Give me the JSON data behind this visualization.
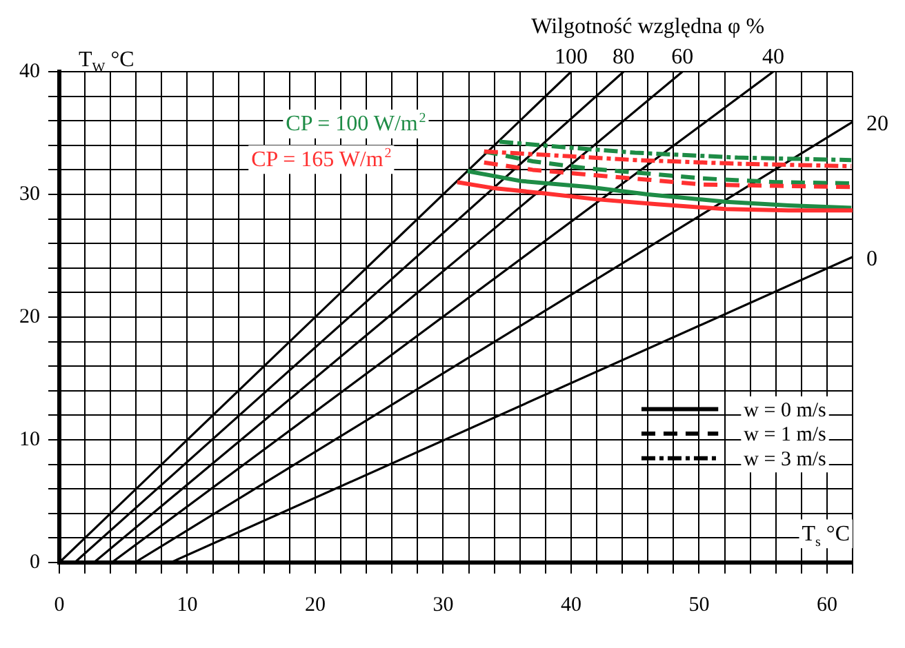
{
  "chart_data": {
    "type": "line",
    "xlabel": "T$_{s}$ °C",
    "ylabel": "T$_{W}$ °C",
    "xlim": [
      0,
      62
    ],
    "ylim": [
      0,
      40
    ],
    "xticks": [
      0,
      {
        "value": 2,
        "label": null
      },
      {
        "value": 4,
        "label": null
      },
      {
        "value": 6,
        "label": null
      },
      {
        "value": 8,
        "label": null
      },
      10,
      {
        "value": 12,
        "label": null
      },
      {
        "value": 14,
        "label": null
      },
      {
        "value": 16,
        "label": null
      },
      {
        "value": 18,
        "label": null
      },
      20,
      {
        "value": 22,
        "label": null
      },
      {
        "value": 24,
        "label": null
      },
      {
        "value": 26,
        "label": null
      },
      {
        "value": 28,
        "label": null
      },
      30,
      {
        "value": 32,
        "label": null
      },
      {
        "value": 34,
        "label": null
      },
      {
        "value": 36,
        "label": null
      },
      {
        "value": 38,
        "label": null
      },
      40,
      {
        "value": 42,
        "label": null
      },
      {
        "value": 44,
        "label": null
      },
      {
        "value": 46,
        "label": null
      },
      {
        "value": 48,
        "label": null
      },
      50,
      {
        "value": 52,
        "label": null
      },
      {
        "value": 54,
        "label": null
      },
      {
        "value": 56,
        "label": null
      },
      {
        "value": 58,
        "label": null
      },
      60,
      {
        "value": 62,
        "label": null
      }
    ],
    "yticks": [
      0,
      {
        "value": 2,
        "label": null
      },
      {
        "value": 4,
        "label": null
      },
      {
        "value": 6,
        "label": null
      },
      {
        "value": 8,
        "label": null
      },
      10,
      {
        "value": 12,
        "label": null
      },
      {
        "value": 14,
        "label": null
      },
      {
        "value": 16,
        "label": null
      },
      {
        "value": 18,
        "label": null
      },
      20,
      {
        "value": 22,
        "label": null
      },
      {
        "value": 24,
        "label": null
      },
      {
        "value": 26,
        "label": null
      },
      {
        "value": 28,
        "label": null
      },
      30,
      {
        "value": 32,
        "label": null
      },
      {
        "value": 34,
        "label": null
      },
      {
        "value": 36,
        "label": null
      },
      {
        "value": 38,
        "label": null
      },
      40
    ],
    "grid": true,
    "marker": "none",
    "series": [
      {
        "name": "100",
        "color": "#000000",
        "line_style": "solid",
        "x": [
          0,
          40
        ],
        "values": [
          0,
          40
        ]
      },
      {
        "name": "80",
        "color": "#000000",
        "line_style": "solid",
        "x": [
          1.2,
          44.1
        ],
        "values": [
          0,
          40
        ]
      },
      {
        "name": "60",
        "color": "#000000",
        "line_style": "solid",
        "x": [
          2.7,
          48.7
        ],
        "values": [
          0,
          40
        ]
      },
      {
        "name": "40",
        "color": "#000000",
        "line_style": "solid",
        "x": [
          4.1,
          55.8
        ],
        "values": [
          0,
          40
        ]
      },
      {
        "name": "20",
        "color": "#000000",
        "line_style": "solid",
        "x": [
          5.9,
          62
        ],
        "values": [
          0,
          35.9
        ]
      },
      {
        "name": "0",
        "color": "#000000",
        "line_style": "solid",
        "x": [
          8.7,
          62
        ],
        "values": [
          0,
          24.9
        ]
      },
      {
        "color": "#1e8c46",
        "line_style": "solid",
        "x": [
          31.9,
          36,
          41.4,
          46,
          52.1,
          57,
          61.9
        ],
        "values": [
          31.9,
          31.1,
          30.6,
          30.0,
          29.4,
          29.1,
          28.9
        ]
      },
      {
        "color": "#ff3030",
        "line_style": "solid",
        "x": [
          31.1,
          34,
          37.8,
          42,
          46.7,
          52.1,
          57,
          62
        ],
        "values": [
          31.0,
          30.5,
          30.1,
          29.6,
          29.2,
          28.8,
          28.7,
          28.7
        ]
      },
      {
        "color": "#1e8c46",
        "line_style": "dashed",
        "x": [
          33.2,
          37,
          41.4,
          46,
          50.3,
          56,
          62
        ],
        "values": [
          33.5,
          32.7,
          32.1,
          31.7,
          31.3,
          31.0,
          30.9
        ]
      },
      {
        "color": "#ff3030",
        "line_style": "dashed",
        "x": [
          33.2,
          37,
          41.4,
          46,
          50.3,
          56,
          62
        ],
        "values": [
          32.6,
          32.0,
          31.6,
          31.2,
          30.8,
          30.7,
          30.6
        ]
      },
      {
        "color": "#1e8c46",
        "line_style": "dashdot",
        "x": [
          34.4,
          40,
          45.0,
          53,
          61.9
        ],
        "values": [
          34.3,
          33.8,
          33.4,
          33.0,
          32.8
        ]
      },
      {
        "color": "#ff3030",
        "line_style": "dashdot",
        "x": [
          33.2,
          40,
          45.0,
          53,
          61.9
        ],
        "values": [
          33.5,
          33.1,
          32.8,
          32.5,
          32.3
        ]
      }
    ],
    "annotations": [
      "Wilgotność względna φ %",
      "CP = 100 W/m$^{2}$",
      "CP = 165 W/m$^{2}$",
      "w = 0 m/s",
      "w = 1 m/s",
      "w = 3 m/s"
    ]
  }
}
